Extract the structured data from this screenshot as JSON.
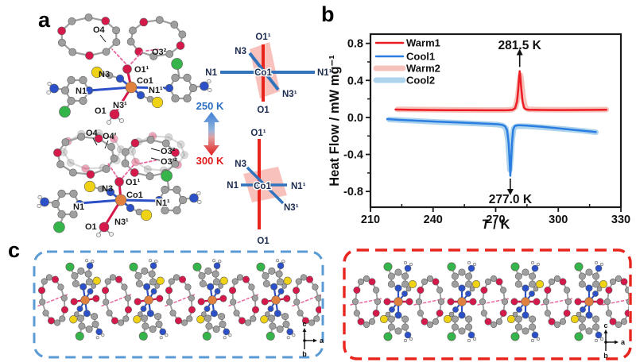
{
  "panels": {
    "a": "a",
    "b": "b",
    "c": "c"
  },
  "panel_a": {
    "temp_low": "250 K",
    "temp_high": "300 K",
    "temp_low_color": "#2b6fc2",
    "temp_high_color": "#e31b1b",
    "s250": {
      "o4": "O4",
      "o32": "O3²",
      "o11": "O1¹",
      "n3": "N3",
      "co1": "Co1",
      "n1": "N1",
      "n11": "N1¹",
      "n31": "N3¹",
      "o1": "O1"
    },
    "s300": {
      "o4": "O4",
      "o4p": "O4′",
      "o32": "O3²",
      "o32p": "O3′²",
      "o11": "O1¹",
      "n3": "N3",
      "co1": "Co1",
      "n1": "N1",
      "n11": "N1¹",
      "n31": "N3¹",
      "o1": "O1"
    },
    "d250": {
      "o11": "O1¹",
      "n3": "N3",
      "n1": "N1",
      "co1": "Co1",
      "n11": "N1¹",
      "n31": "N3¹",
      "o1": "O1"
    },
    "d300": {
      "o11": "O1¹",
      "n3": "N3",
      "n1": "N1",
      "co1": "Co1",
      "n11": "N1¹",
      "n31": "N3¹",
      "o1": "O1"
    },
    "atom_colors": {
      "Co": "#e0823d",
      "O": "#d6194b",
      "N": "#2b50c8",
      "S": "#f0d215",
      "Cl": "#35b44a",
      "C": "#9f9f9f",
      "H": "#efefef",
      "h_bond": "#e8679f"
    }
  },
  "chart_data": {
    "type": "line",
    "title": "",
    "xlabel_italic": "T",
    "xlabel_rest": " / K",
    "ylabel": "Heat Flow / mW mg⁻¹",
    "xlim": [
      210,
      330
    ],
    "ylim": [
      -0.97,
      0.9
    ],
    "xticks": [
      "210",
      "240",
      "270",
      "300",
      "330"
    ],
    "xtick_values": [
      210,
      240,
      270,
      300,
      330
    ],
    "xticks_minor": [
      225,
      255,
      285,
      315
    ],
    "yticks": [
      "0.8",
      "0.4",
      "0.0",
      "-0.4",
      "-0.8"
    ],
    "ytick_values": [
      0.8,
      0.4,
      0.0,
      -0.4,
      -0.8
    ],
    "yticks_minor": [
      0.6,
      0.2,
      -0.2,
      -0.6
    ],
    "grid": false,
    "legend_position": "top-left-inside",
    "legend": [
      {
        "label": "Warm1",
        "color": "#ed1c24",
        "width": 2.5
      },
      {
        "label": "Cool1",
        "color": "#2a7de1",
        "width": 2.5
      },
      {
        "label": "Warm2",
        "color": "#f5c3bc",
        "width": 7
      },
      {
        "label": "Cool2",
        "color": "#aed3ec",
        "width": 7
      }
    ],
    "series": [
      {
        "name": "Warm2",
        "color": "#f5c3bc",
        "width": 7,
        "points": [
          [
            223,
            0.088
          ],
          [
            235,
            0.085
          ],
          [
            250,
            0.082
          ],
          [
            265,
            0.08
          ],
          [
            275,
            0.08
          ],
          [
            278,
            0.085
          ],
          [
            279.5,
            0.11
          ],
          [
            280.6,
            0.22
          ],
          [
            281.4,
            0.38
          ],
          [
            281.9,
            0.455
          ],
          [
            282.4,
            0.38
          ],
          [
            283.2,
            0.21
          ],
          [
            284.2,
            0.11
          ],
          [
            285.5,
            0.088
          ],
          [
            292,
            0.084
          ],
          [
            305,
            0.083
          ],
          [
            318,
            0.084
          ],
          [
            323,
            0.085
          ]
        ]
      },
      {
        "name": "Cool2",
        "color": "#aed3ec",
        "width": 7,
        "points": [
          [
            219,
            -0.022
          ],
          [
            230,
            -0.035
          ],
          [
            243,
            -0.05
          ],
          [
            256,
            -0.062
          ],
          [
            266,
            -0.072
          ],
          [
            271,
            -0.078
          ],
          [
            273.5,
            -0.088
          ],
          [
            275,
            -0.12
          ],
          [
            275.9,
            -0.25
          ],
          [
            276.4,
            -0.42
          ],
          [
            276.8,
            -0.565
          ],
          [
            277.2,
            -0.46
          ],
          [
            277.9,
            -0.24
          ],
          [
            278.6,
            -0.12
          ],
          [
            280,
            -0.095
          ],
          [
            284,
            -0.094
          ],
          [
            292,
            -0.106
          ],
          [
            302,
            -0.124
          ],
          [
            312,
            -0.145
          ],
          [
            318,
            -0.16
          ]
        ]
      },
      {
        "name": "Warm1",
        "color": "#ed1c24",
        "width": 2.5,
        "points": [
          [
            222,
            0.085
          ],
          [
            228,
            0.083
          ],
          [
            236,
            0.081
          ],
          [
            246,
            0.079
          ],
          [
            256,
            0.078
          ],
          [
            266,
            0.077
          ],
          [
            272,
            0.077
          ],
          [
            276,
            0.078
          ],
          [
            278,
            0.082
          ],
          [
            279.3,
            0.1
          ],
          [
            280.2,
            0.17
          ],
          [
            280.8,
            0.3
          ],
          [
            281.2,
            0.43
          ],
          [
            281.5,
            0.5
          ],
          [
            281.8,
            0.44
          ],
          [
            282.3,
            0.3
          ],
          [
            282.9,
            0.17
          ],
          [
            283.6,
            0.105
          ],
          [
            284.5,
            0.088
          ],
          [
            286,
            0.083
          ],
          [
            292,
            0.081
          ],
          [
            300,
            0.08
          ],
          [
            310,
            0.081
          ],
          [
            318,
            0.082
          ],
          [
            323,
            0.083
          ]
        ]
      },
      {
        "name": "Cool1",
        "color": "#2a7de1",
        "width": 2.5,
        "points": [
          [
            218,
            -0.018
          ],
          [
            224,
            -0.026
          ],
          [
            232,
            -0.035
          ],
          [
            242,
            -0.045
          ],
          [
            252,
            -0.055
          ],
          [
            262,
            -0.064
          ],
          [
            268,
            -0.07
          ],
          [
            271,
            -0.074
          ],
          [
            273,
            -0.08
          ],
          [
            274.5,
            -0.095
          ],
          [
            275.5,
            -0.14
          ],
          [
            276.2,
            -0.28
          ],
          [
            276.7,
            -0.48
          ],
          [
            277,
            -0.63
          ],
          [
            277.3,
            -0.52
          ],
          [
            277.8,
            -0.28
          ],
          [
            278.4,
            -0.13
          ],
          [
            279.2,
            -0.092
          ],
          [
            281,
            -0.084
          ],
          [
            285,
            -0.088
          ],
          [
            292,
            -0.1
          ],
          [
            300,
            -0.117
          ],
          [
            308,
            -0.135
          ],
          [
            314,
            -0.148
          ],
          [
            318,
            -0.158
          ]
        ]
      }
    ],
    "annotations": [
      {
        "label": "281.5 K",
        "x": 281.5,
        "label_value": 0.78,
        "arrow_from": 0.545,
        "arrow_to": 0.69,
        "direction": "up"
      },
      {
        "label": "277.0 K",
        "x": 277.0,
        "label_value": -0.885,
        "arrow_from": -0.66,
        "arrow_to": -0.79,
        "direction": "down"
      }
    ]
  },
  "panel_c": {
    "boxes": [
      {
        "name": "chain-structure-250K",
        "border_color": "#5b9bd5",
        "axes": {
          "up": "c",
          "right": "a",
          "down": "b"
        }
      },
      {
        "name": "chain-structure-300K",
        "border_color": "#e8241c",
        "axes": {
          "up": "c",
          "right": "a",
          "down": "b"
        }
      }
    ]
  }
}
